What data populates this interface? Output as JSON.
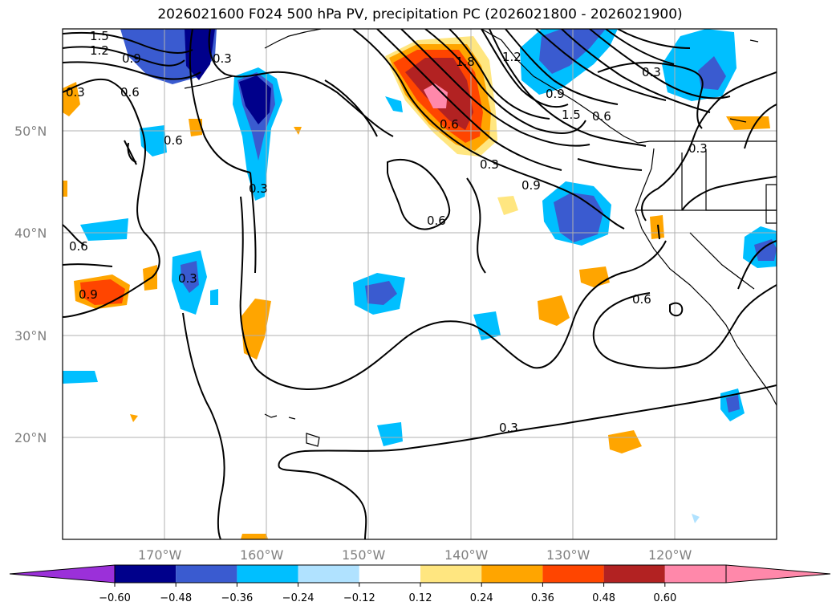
{
  "title": "2026021600 F024 500 hPa PV, precipitation PC (2026021800 - 2026021900)",
  "latitude_labels": [
    "50°N",
    "40°N",
    "30°N",
    "20°N"
  ],
  "longitude_labels": [
    "170°W",
    "160°W",
    "150°W",
    "140°W",
    "130°W",
    "120°W"
  ],
  "contour_labels": [
    "1.5",
    "1.2",
    "0.9",
    "0.3",
    "0.3",
    "0.6",
    "0.6",
    "0.3",
    "0.6",
    "0.6",
    "0.9",
    "0.6",
    "0.3",
    "0.9",
    "1.8",
    "0.6",
    "1.2",
    "0.3",
    "0.9",
    "1.5",
    "0.3",
    "0.3",
    "0.6",
    "0.3"
  ],
  "colorbar": {
    "ticks": [
      "−0.60",
      "−0.48",
      "−0.36",
      "−0.24",
      "−0.12",
      "0.12",
      "0.24",
      "0.36",
      "0.48",
      "0.60"
    ],
    "under_color": "#9b30d9",
    "colors": [
      "#00008b",
      "#3a5bd0",
      "#00bfff",
      "#b0e2ff",
      "#ffffff",
      "#ffe680",
      "#ffa500",
      "#ff4500",
      "#b22222",
      "#ff88aa"
    ],
    "over_color": "#ff88aa"
  },
  "colors": {
    "grid": "#b0b0b0",
    "contour": "#000000",
    "coastline": "#000000"
  }
}
